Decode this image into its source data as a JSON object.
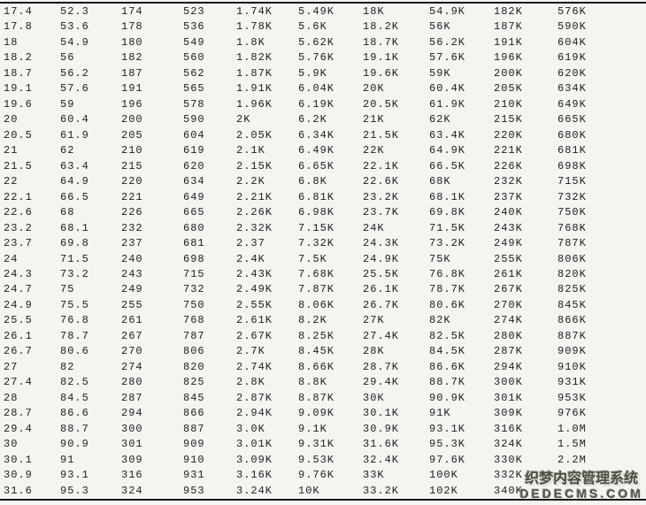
{
  "table": {
    "rows": [
      [
        "17.4",
        "52.3",
        "174",
        "523",
        "1.74K",
        "5.49K",
        "18K",
        "54.9K",
        "182K",
        "576K"
      ],
      [
        "17.8",
        "53.6",
        "178",
        "536",
        "1.78K",
        "5.6K",
        "18.2K",
        "56K",
        "187K",
        "590K"
      ],
      [
        "18",
        "54.9",
        "180",
        "549",
        "1.8K",
        "5.62K",
        "18.7K",
        "56.2K",
        "191K",
        "604K"
      ],
      [
        "18.2",
        "56",
        "182",
        "560",
        "1.82K",
        "5.76K",
        "19.1K",
        "57.6K",
        "196K",
        "619K"
      ],
      [
        "18.7",
        "56.2",
        "187",
        "562",
        "1.87K",
        "5.9K",
        "19.6K",
        "59K",
        "200K",
        "620K"
      ],
      [
        "19.1",
        "57.6",
        "191",
        "565",
        "1.91K",
        "6.04K",
        "20K",
        "60.4K",
        "205K",
        "634K"
      ],
      [
        "19.6",
        "59",
        "196",
        "578",
        "1.96K",
        "6.19K",
        "20.5K",
        "61.9K",
        "210K",
        "649K"
      ],
      [
        "20",
        "60.4",
        "200",
        "590",
        "2K",
        "6.2K",
        "21K",
        "62K",
        "215K",
        "665K"
      ],
      [
        "20.5",
        "61.9",
        "205",
        "604",
        "2.05K",
        "6.34K",
        "21.5K",
        "63.4K",
        "220K",
        "680K"
      ],
      [
        "21",
        "62",
        "210",
        "619",
        "2.1K",
        "6.49K",
        "22K",
        "64.9K",
        "221K",
        "681K"
      ],
      [
        "21.5",
        "63.4",
        "215",
        "620",
        "2.15K",
        "6.65K",
        "22.1K",
        "66.5K",
        "226K",
        "698K"
      ],
      [
        "22",
        "64.9",
        "220",
        "634",
        "2.2K",
        "6.8K",
        "22.6K",
        "68K",
        "232K",
        "715K"
      ],
      [
        "22.1",
        "66.5",
        "221",
        "649",
        "2.21K",
        "6.81K",
        "23.2K",
        "68.1K",
        "237K",
        "732K"
      ],
      [
        "22.6",
        "68",
        "226",
        "665",
        "2.26K",
        "6.98K",
        "23.7K",
        "69.8K",
        "240K",
        "750K"
      ],
      [
        "23.2",
        "68.1",
        "232",
        "680",
        "2.32K",
        "7.15K",
        "24K",
        "71.5K",
        "243K",
        "768K"
      ],
      [
        "23.7",
        "69.8",
        "237",
        "681",
        "2.37",
        "7.32K",
        "24.3K",
        "73.2K",
        "249K",
        "787K"
      ],
      [
        "24",
        "71.5",
        "240",
        "698",
        "2.4K",
        "7.5K",
        "24.9K",
        "75K",
        "255K",
        "806K"
      ],
      [
        "24.3",
        "73.2",
        "243",
        "715",
        "2.43K",
        "7.68K",
        "25.5K",
        "76.8K",
        "261K",
        "820K"
      ],
      [
        "24.7",
        "75",
        "249",
        "732",
        "2.49K",
        "7.87K",
        "26.1K",
        "78.7K",
        "267K",
        "825K"
      ],
      [
        "24.9",
        "75.5",
        "255",
        "750",
        "2.55K",
        "8.06K",
        "26.7K",
        "80.6K",
        "270K",
        "845K"
      ],
      [
        "25.5",
        "76.8",
        "261",
        "768",
        "2.61K",
        "8.2K",
        "27K",
        "82K",
        "274K",
        "866K"
      ],
      [
        "26.1",
        "78.7",
        "267",
        "787",
        "2.67K",
        "8.25K",
        "27.4K",
        "82.5K",
        "280K",
        "887K"
      ],
      [
        "26.7",
        "80.6",
        "270",
        "806",
        "2.7K",
        "8.45K",
        "28K",
        "84.5K",
        "287K",
        "909K"
      ],
      [
        "27",
        "82",
        "274",
        "820",
        "2.74K",
        "8.66K",
        "28.7K",
        "86.6K",
        "294K",
        "910K"
      ],
      [
        "27.4",
        "82.5",
        "280",
        "825",
        "2.8K",
        "8.8K",
        "29.4K",
        "88.7K",
        "300K",
        "931K"
      ],
      [
        "28",
        "84.5",
        "287",
        "845",
        "2.87K",
        "8.87K",
        "30K",
        "90.9K",
        "301K",
        "953K"
      ],
      [
        "28.7",
        "86.6",
        "294",
        "866",
        "2.94K",
        "9.09K",
        "30.1K",
        "91K",
        "309K",
        "976K"
      ],
      [
        "29.4",
        "88.7",
        "300",
        "887",
        "3.0K",
        "9.1K",
        "30.9K",
        "93.1K",
        "316K",
        "1.0M"
      ],
      [
        "30",
        "90.9",
        "301",
        "909",
        "3.01K",
        "9.31K",
        "31.6K",
        "95.3K",
        "324K",
        "1.5M"
      ],
      [
        "30.1",
        "91",
        "309",
        "910",
        "3.09K",
        "9.53K",
        "32.4K",
        "97.6K",
        "330K",
        "2.2M"
      ],
      [
        "30.9",
        "93.1",
        "316",
        "931",
        "3.16K",
        "9.76K",
        "33K",
        "100K",
        "332K",
        ""
      ],
      [
        "31.6",
        "95.3",
        "324",
        "953",
        "3.24K",
        "10K",
        "33.2K",
        "102K",
        "340K",
        ""
      ]
    ]
  },
  "watermark": {
    "line1": "织梦内容管理系统",
    "line2": "DEDECMS.COM"
  },
  "colors": {
    "background": "#f4f4f1",
    "text": "#1e1e1e",
    "rule": "#151515",
    "watermark_text": "#4c4c44"
  }
}
